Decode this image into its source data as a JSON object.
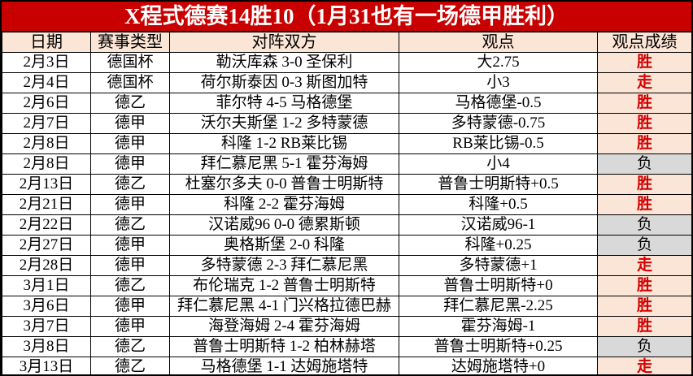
{
  "title": "X程式德赛14胜10（1月31也有一场德甲胜利）",
  "table": {
    "columns": [
      "日期",
      "赛事类型",
      "对阵双方",
      "观点",
      "观点成绩"
    ],
    "rows": [
      {
        "date": "2月3日",
        "league": "德国杯",
        "match": "勒沃库森 3-0 圣保利",
        "view": "大2.75",
        "result": "胜"
      },
      {
        "date": "2月4日",
        "league": "德国杯",
        "match": "荷尔斯泰因 0-3 斯图加特",
        "view": "小3",
        "result": "走"
      },
      {
        "date": "2月6日",
        "league": "德乙",
        "match": "菲尔特 4-5 马格德堡",
        "view": "马格德堡-0.5",
        "result": "胜"
      },
      {
        "date": "2月7日",
        "league": "德甲",
        "match": "沃尔夫斯堡 1-2 多特蒙德",
        "view": "多特蒙德-0.75",
        "result": "胜"
      },
      {
        "date": "2月8日",
        "league": "德甲",
        "match": "科隆 1-2 RB莱比锡",
        "view": "RB莱比锡-0.5",
        "result": "胜"
      },
      {
        "date": "2月8日",
        "league": "德甲",
        "match": "拜仁慕尼黑 5-1 霍芬海姆",
        "view": "小4",
        "result": "负"
      },
      {
        "date": "2月13日",
        "league": "德乙",
        "match": "杜塞尔多夫 0-0 普鲁士明斯特",
        "view": "普鲁士明斯特+0.5",
        "result": "胜"
      },
      {
        "date": "2月21日",
        "league": "德甲",
        "match": "科隆 2-2 霍芬海姆",
        "view": "科隆+0.5",
        "result": "胜"
      },
      {
        "date": "2月22日",
        "league": "德乙",
        "match": "汉诺威96 0-0 德累斯顿",
        "view": "汉诺威96-1",
        "result": "负"
      },
      {
        "date": "2月27日",
        "league": "德甲",
        "match": "奥格斯堡 2-0 科隆",
        "view": "科隆+0.25",
        "result": "负"
      },
      {
        "date": "2月28日",
        "league": "德甲",
        "match": "多特蒙德 2-3 拜仁慕尼黑",
        "view": "多特蒙德+1",
        "result": "走"
      },
      {
        "date": "3月1日",
        "league": "德乙",
        "match": "布伦瑞克 1-2 普鲁士明斯特",
        "view": "普鲁士明斯特+0",
        "result": "胜"
      },
      {
        "date": "3月6日",
        "league": "德甲",
        "match": "拜仁慕尼黑 4-1 门兴格拉德巴赫",
        "view": "拜仁慕尼黑-2.25",
        "result": "胜"
      },
      {
        "date": "3月7日",
        "league": "德甲",
        "match": "海登海姆 2-4 霍芬海姆",
        "view": "霍芬海姆-1",
        "result": "胜"
      },
      {
        "date": "3月8日",
        "league": "德乙",
        "match": "普鲁士明斯特 1-2 柏林赫塔",
        "view": "普鲁士明斯特+0.25",
        "result": "负"
      },
      {
        "date": "3月13日",
        "league": "德乙",
        "match": "马格德堡 1-1 达姆施塔特",
        "view": "达姆施塔特+0",
        "result": "走"
      }
    ]
  },
  "result_styles": {
    "胜": "win",
    "走": "win",
    "负": "loss"
  },
  "colors": {
    "title_bg": "#c80000",
    "title_text": "#ffffff",
    "header_bg": "#fbe5d6",
    "result_win_bg": "#fbe5d6",
    "result_win_text": "#d40000",
    "result_loss_bg": "#d9d9d9",
    "result_loss_text": "#000000",
    "border": "#000000"
  }
}
